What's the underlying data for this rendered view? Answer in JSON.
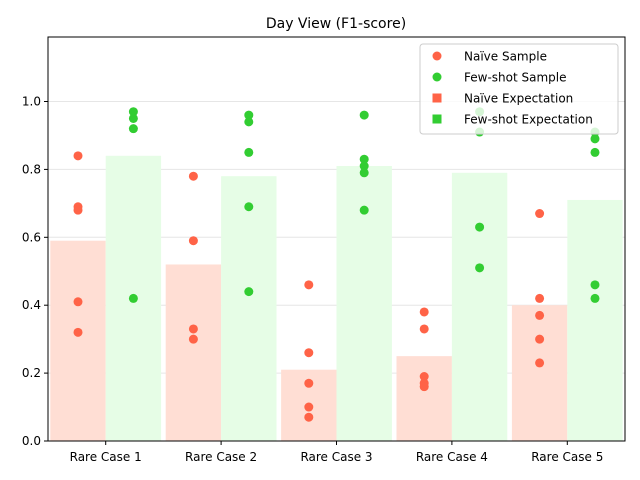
{
  "chart_data": {
    "type": "bar",
    "title": "Day View (F1-score)",
    "xlabel": "",
    "ylabel": "",
    "categories": [
      "Rare Case 1",
      "Rare Case 2",
      "Rare Case 3",
      "Rare Case 4",
      "Rare Case 5"
    ],
    "ylim": [
      0,
      1.19
    ],
    "yticks": [
      "0.0",
      "0.2",
      "0.4",
      "0.6",
      "0.8",
      "1.0"
    ],
    "grid": "horizontal",
    "legend_position": "top-right",
    "series": [
      {
        "name": "Naïve Expectation",
        "kind": "bar",
        "color": "#ffded4",
        "values": [
          0.59,
          0.52,
          0.21,
          0.25,
          0.4
        ]
      },
      {
        "name": "Few-shot Expectation",
        "kind": "bar",
        "color": "#e6fde6",
        "values": [
          0.84,
          0.78,
          0.81,
          0.79,
          0.71
        ]
      },
      {
        "name": "Naïve Sample",
        "kind": "scatter",
        "color": "#ff6347",
        "points": [
          [
            0.84,
            0.69,
            0.68,
            0.41,
            0.32
          ],
          [
            0.78,
            0.59,
            0.33,
            0.3
          ],
          [
            0.46,
            0.26,
            0.17,
            0.1,
            0.07
          ],
          [
            0.38,
            0.33,
            0.19,
            0.17,
            0.16
          ],
          [
            0.67,
            0.42,
            0.37,
            0.3,
            0.23
          ]
        ]
      },
      {
        "name": "Few-shot Sample",
        "kind": "scatter",
        "color": "#32cd32",
        "points": [
          [
            0.97,
            0.95,
            0.92,
            0.42
          ],
          [
            0.96,
            0.94,
            0.85,
            0.69,
            0.44
          ],
          [
            0.96,
            0.83,
            0.81,
            0.79,
            0.68
          ],
          [
            0.97,
            0.91,
            0.63,
            0.51
          ],
          [
            0.91,
            0.89,
            0.85,
            0.46,
            0.42
          ]
        ]
      }
    ],
    "legend": [
      {
        "label": "Naïve Sample",
        "marker": "circle",
        "color": "#ff6347"
      },
      {
        "label": "Few-shot Sample",
        "marker": "circle",
        "color": "#32cd32"
      },
      {
        "label": "Naïve Expectation",
        "marker": "square",
        "color": "#ff6347"
      },
      {
        "label": "Few-shot Expectation",
        "marker": "square",
        "color": "#32cd32"
      }
    ]
  }
}
